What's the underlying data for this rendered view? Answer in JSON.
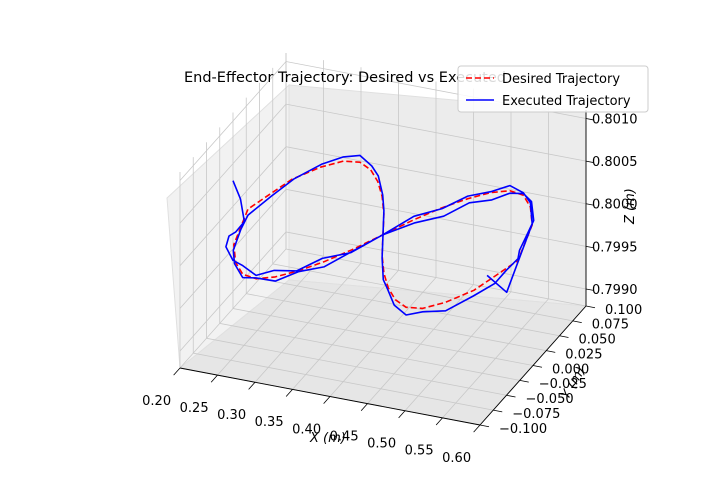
{
  "chart_data": {
    "type": "line",
    "projection": "3d",
    "title": "End-Effector Trajectory: Desired vs Executed",
    "xlabel": "X (m)",
    "ylabel": "Y (m)",
    "zlabel": "Z (m)",
    "xlim": [
      0.2,
      0.6
    ],
    "ylim": [
      -0.1,
      0.1
    ],
    "zlim": [
      0.7988,
      0.8011
    ],
    "x_ticks": [
      "0.20",
      "0.25",
      "0.30",
      "0.35",
      "0.40",
      "0.45",
      "0.50",
      "0.55",
      "0.60"
    ],
    "y_ticks": [
      "−0.100",
      "−0.075",
      "−0.050",
      "−0.025",
      "0.000",
      "0.025",
      "0.050",
      "0.075",
      "0.100"
    ],
    "z_ticks": [
      "0.7990",
      "0.7995",
      "0.8000",
      "0.8005",
      "0.8010"
    ],
    "grid": true,
    "legend_position": "top-right",
    "series": [
      {
        "name": "Desired Trajectory",
        "color": "#ff0000",
        "style": "dashed",
        "x": [
          0.4,
          0.42,
          0.44,
          0.46,
          0.48,
          0.5,
          0.52,
          0.54,
          0.56,
          0.57,
          0.58,
          0.57,
          0.56,
          0.54,
          0.52,
          0.5,
          0.48,
          0.46,
          0.44,
          0.42,
          0.4,
          0.38,
          0.36,
          0.34,
          0.32,
          0.3,
          0.28,
          0.26,
          0.24,
          0.23,
          0.22,
          0.23,
          0.24,
          0.26,
          0.28,
          0.3,
          0.32,
          0.34,
          0.36,
          0.38,
          0.4
        ],
        "y": [
          0.0,
          0.03,
          0.055,
          0.075,
          0.09,
          0.098,
          0.095,
          0.08,
          0.055,
          0.028,
          0.0,
          -0.028,
          -0.055,
          -0.08,
          -0.095,
          -0.098,
          -0.09,
          -0.075,
          -0.055,
          -0.03,
          0.0,
          0.03,
          0.055,
          0.075,
          0.09,
          0.098,
          0.095,
          0.08,
          0.055,
          0.028,
          0.0,
          -0.028,
          -0.055,
          -0.08,
          -0.095,
          -0.098,
          -0.09,
          -0.075,
          -0.055,
          -0.03,
          0.0
        ],
        "z": [
          0.8,
          0.8,
          0.8,
          0.8,
          0.8,
          0.8,
          0.8,
          0.8,
          0.8,
          0.8,
          0.8,
          0.8,
          0.8,
          0.8,
          0.8,
          0.8,
          0.8,
          0.8,
          0.8,
          0.8,
          0.8,
          0.8,
          0.8,
          0.8,
          0.8,
          0.8,
          0.8,
          0.8,
          0.8,
          0.8,
          0.8,
          0.8,
          0.8,
          0.8,
          0.8,
          0.8,
          0.8,
          0.8,
          0.8,
          0.8,
          0.8
        ]
      },
      {
        "name": "Executed Trajectory",
        "color": "#0000ff",
        "style": "solid",
        "x": [
          0.2,
          0.21,
          0.215,
          0.22,
          0.225,
          0.23,
          0.24,
          0.26,
          0.28,
          0.3,
          0.32,
          0.34,
          0.36,
          0.38,
          0.4,
          0.42,
          0.44,
          0.46,
          0.48,
          0.5,
          0.52,
          0.54,
          0.56,
          0.57,
          0.575,
          0.58,
          0.575,
          0.57,
          0.56,
          0.54,
          0.52,
          0.5,
          0.48,
          0.46,
          0.44,
          0.42,
          0.4,
          0.38,
          0.36,
          0.34,
          0.32,
          0.3,
          0.28,
          0.26,
          0.24,
          0.23,
          0.22,
          0.23,
          0.24,
          0.26,
          0.28,
          0.3,
          0.32,
          0.34,
          0.36,
          0.38,
          0.4,
          0.42,
          0.44,
          0.46,
          0.48,
          0.5,
          0.52,
          0.54,
          0.56,
          0.57,
          0.565,
          0.56
        ],
        "y": [
          0.0,
          0.0,
          0.0,
          -0.01,
          -0.03,
          -0.05,
          -0.07,
          -0.085,
          -0.095,
          -0.098,
          -0.092,
          -0.078,
          -0.058,
          -0.032,
          0.0,
          0.032,
          0.058,
          0.078,
          0.092,
          0.098,
          0.095,
          0.082,
          0.058,
          0.03,
          0.01,
          0.0,
          -0.015,
          -0.03,
          -0.056,
          -0.08,
          -0.095,
          -0.098,
          -0.092,
          -0.076,
          -0.056,
          -0.03,
          0.0,
          0.03,
          0.056,
          0.076,
          0.092,
          0.098,
          0.095,
          0.082,
          0.058,
          0.03,
          0.0,
          -0.028,
          -0.056,
          -0.082,
          -0.095,
          -0.098,
          -0.09,
          -0.075,
          -0.055,
          -0.03,
          0.0,
          0.03,
          0.055,
          0.075,
          0.09,
          0.098,
          0.095,
          0.08,
          0.055,
          0.028,
          0.0,
          -0.03
        ],
        "z": [
          0.8003,
          0.8001,
          0.79985,
          0.7999,
          0.79995,
          0.80005,
          0.80008,
          0.80006,
          0.8001,
          0.80004,
          0.80009,
          0.80002,
          0.80006,
          0.79998,
          0.8,
          0.79995,
          0.79988,
          0.79993,
          0.7999,
          0.79997,
          0.80002,
          0.80005,
          0.80003,
          0.80006,
          0.80004,
          0.80002,
          0.79998,
          0.79992,
          0.79994,
          0.7999,
          0.79996,
          0.79991,
          0.79995,
          0.79999,
          0.79993,
          0.79997,
          0.8,
          0.80004,
          0.80001,
          0.80006,
          0.80003,
          0.80008,
          0.80005,
          0.80002,
          0.79998,
          0.79996,
          0.79993,
          0.79997,
          0.79994,
          0.8,
          0.79996,
          0.80001,
          0.79995,
          0.79999,
          0.79994,
          0.79998,
          0.8,
          0.80004,
          0.79999,
          0.80003,
          0.80001,
          0.80006,
          0.80003,
          0.80005,
          0.80001,
          0.8,
          0.7996,
          0.8
        ]
      }
    ]
  }
}
